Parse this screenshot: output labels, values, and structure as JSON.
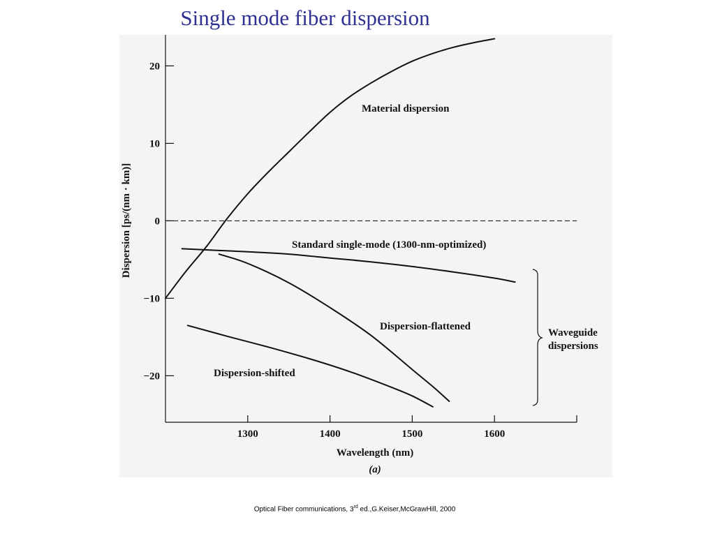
{
  "slide": {
    "title": "Single mode fiber dispersion",
    "citation_prefix": "Optical Fiber communications, 3",
    "citation_sup": "rd",
    "citation_suffix": " ed.,G.Keiser,McGrawHill, 2000"
  },
  "chart_data": {
    "type": "line",
    "title": "",
    "xlabel": "Wavelength (nm)",
    "ylabel": "Dispersion [ps/(nm · km)]",
    "panel_label": "(a)",
    "xlim": [
      1200,
      1700
    ],
    "ylim": [
      -26,
      24
    ],
    "xticks": [
      1300,
      1400,
      1500,
      1600
    ],
    "yticks": [
      20,
      10,
      0,
      -10,
      -20
    ],
    "ytick_labels": [
      "20",
      "10",
      "0",
      "−10",
      "−20"
    ],
    "grid": false,
    "zero_line": {
      "y": 0,
      "style": "dashed"
    },
    "series": [
      {
        "name": "Material dispersion",
        "x": [
          1200,
          1225,
          1250,
          1275,
          1300,
          1325,
          1350,
          1375,
          1400,
          1425,
          1450,
          1475,
          1500,
          1525,
          1550,
          1575,
          1600
        ],
        "y": [
          -10,
          -6.5,
          -3.3,
          0.3,
          3.5,
          6.3,
          8.9,
          11.5,
          14.0,
          16.1,
          17.8,
          19.3,
          20.6,
          21.6,
          22.4,
          23.0,
          23.5
        ]
      },
      {
        "name": "Standard single-mode (1300-nm-optimized)",
        "x": [
          1220,
          1260,
          1300,
          1350,
          1400,
          1450,
          1500,
          1550,
          1600,
          1625
        ],
        "y": [
          -3.6,
          -3.8,
          -4.0,
          -4.3,
          -4.8,
          -5.3,
          -5.9,
          -6.6,
          -7.4,
          -7.9
        ]
      },
      {
        "name": "Dispersion-flattened",
        "x": [
          1265,
          1300,
          1350,
          1400,
          1450,
          1500,
          1525,
          1545
        ],
        "y": [
          -4.3,
          -5.5,
          -8.0,
          -11.2,
          -14.8,
          -19.2,
          -21.4,
          -23.3
        ]
      },
      {
        "name": "Dispersion-shifted",
        "x": [
          1227,
          1275,
          1325,
          1375,
          1425,
          1475,
          1500,
          1525
        ],
        "y": [
          -13.5,
          -14.9,
          -16.3,
          -17.8,
          -19.5,
          -21.5,
          -22.6,
          -24.0
        ]
      }
    ],
    "annotation": "Waveguide dispersions"
  }
}
